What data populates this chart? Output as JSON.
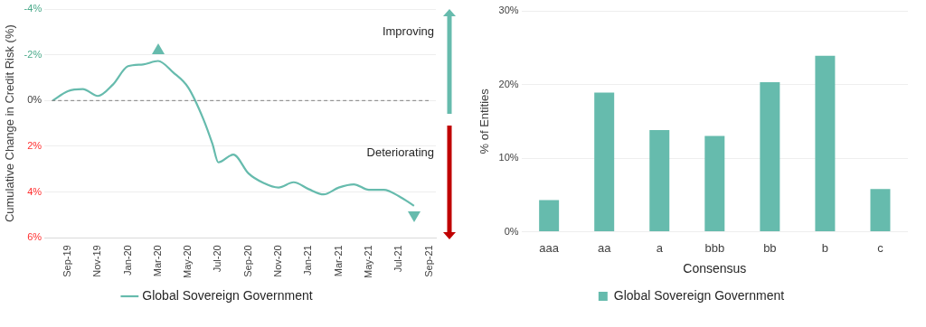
{
  "chart_data": [
    {
      "type": "line",
      "ylabel": "Cumulative Change in Credit Risk (%)",
      "x": [
        "2019-08-01",
        "2019-09-01",
        "2019-10-01",
        "2019-11-01",
        "2019-12-01",
        "2020-01-01",
        "2020-02-01",
        "2020-03-01",
        "2020-04-01",
        "2020-05-01",
        "2020-06-01",
        "2020-06-20",
        "2020-07-01",
        "2020-08-01",
        "2020-09-01",
        "2020-10-01",
        "2020-11-01",
        "2020-12-01",
        "2021-01-01",
        "2021-02-01",
        "2021-03-01",
        "2021-04-01",
        "2021-05-01",
        "2021-06-01",
        "2021-07-01",
        "2021-08-01"
      ],
      "series": [
        {
          "name": "Global Sovereign Government",
          "color": "#66bbad",
          "values": [
            0,
            -0.41,
            -0.5,
            -0.2,
            -0.7,
            -1.5,
            -1.58,
            -1.73,
            -1.23,
            -0.57,
            0.8,
            1.9,
            2.7,
            2.36,
            3.18,
            3.6,
            3.8,
            3.57,
            3.87,
            4.1,
            3.8,
            3.66,
            3.9,
            3.9,
            4.18,
            4.6
          ]
        }
      ],
      "xlim": [
        "2019-07-15",
        "2021-09-15"
      ],
      "xticks": [
        {
          "value": "2019-09-01",
          "label": "Sep-19"
        },
        {
          "value": "2019-11-01",
          "label": "Nov-19"
        },
        {
          "value": "2020-01-01",
          "label": "Jan-20"
        },
        {
          "value": "2020-03-01",
          "label": "Mar-20"
        },
        {
          "value": "2020-05-01",
          "label": "May-20"
        },
        {
          "value": "2020-07-01",
          "label": "Jul-20"
        },
        {
          "value": "2020-09-01",
          "label": "Sep-20"
        },
        {
          "value": "2020-11-01",
          "label": "Nov-20"
        },
        {
          "value": "2021-01-01",
          "label": "Jan-21"
        },
        {
          "value": "2021-03-01",
          "label": "Mar-21"
        },
        {
          "value": "2021-05-01",
          "label": "May-21"
        },
        {
          "value": "2021-07-01",
          "label": "Jul-21"
        },
        {
          "value": "2021-09-01",
          "label": "Sep-21"
        }
      ],
      "ylim": [
        6,
        -4
      ],
      "yticks": [
        {
          "value": -4,
          "label": "-4%"
        },
        {
          "value": -2,
          "label": "-2%"
        },
        {
          "value": 0,
          "label": "0%"
        },
        {
          "value": 2,
          "label": "2%"
        },
        {
          "value": 4,
          "label": "4%"
        },
        {
          "value": 6,
          "label": "6%"
        }
      ],
      "ref_lines": [
        {
          "axis": "y",
          "value": 0,
          "color": "#808080",
          "line_style": "dashed"
        }
      ],
      "annotations": [
        "Improving",
        "Deteriorating"
      ],
      "grid": "y",
      "legend": "bottom",
      "marker": "none",
      "line_style": "solid"
    },
    {
      "type": "bar",
      "xlabel": "Consensus",
      "ylabel": "% of Entities",
      "categories": [
        "aaa",
        "aa",
        "a",
        "bbb",
        "bb",
        "b",
        "c"
      ],
      "series": [
        {
          "name": "Global Sovereign Government",
          "color": "#66bbad",
          "values": [
            4.3,
            18.9,
            13.8,
            13.0,
            20.3,
            23.9,
            5.8
          ]
        }
      ],
      "ylim": [
        0,
        30
      ],
      "yticks": [
        {
          "value": 0,
          "label": "0%"
        },
        {
          "value": 10,
          "label": "10%"
        },
        {
          "value": 20,
          "label": "20%"
        },
        {
          "value": 30,
          "label": "30%"
        }
      ],
      "grid": "y",
      "legend": "bottom"
    }
  ]
}
